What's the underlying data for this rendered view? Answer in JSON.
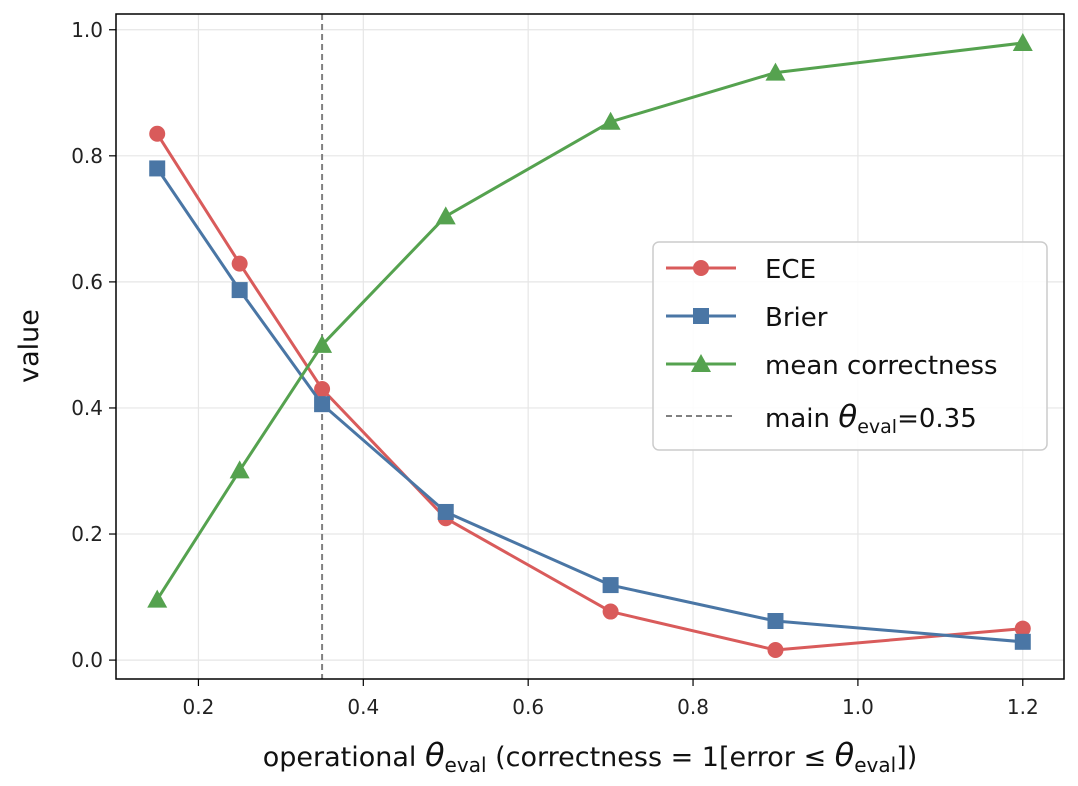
{
  "chart_data": {
    "type": "line",
    "xlabel": {
      "prefix": "operational ",
      "theta": "θ",
      "sub": "eval",
      "middle": "  (correctness = 1[error ≤ ",
      "theta2": "θ",
      "sub2": "eval",
      "suffix": "])"
    },
    "ylabel": "value",
    "xlim": [
      0.1,
      1.25
    ],
    "ylim": [
      -0.03,
      1.025
    ],
    "xticks": [
      0.2,
      0.4,
      0.6,
      0.8,
      1.0,
      1.2
    ],
    "xtick_labels": [
      "0.2",
      "0.4",
      "0.6",
      "0.8",
      "1.0",
      "1.2"
    ],
    "yticks": [
      0.0,
      0.2,
      0.4,
      0.6,
      0.8,
      1.0
    ],
    "ytick_labels": [
      "0.0",
      "0.2",
      "0.4",
      "0.6",
      "0.8",
      "1.0"
    ],
    "grid": true,
    "legend_position": "right",
    "x": [
      0.15,
      0.25,
      0.35,
      0.5,
      0.7,
      0.9,
      1.2
    ],
    "series": [
      {
        "name": "ECE",
        "marker": "circle",
        "color": "#d95b5b",
        "values": [
          0.835,
          0.629,
          0.43,
          0.225,
          0.077,
          0.016,
          0.05
        ]
      },
      {
        "name": "Brier",
        "marker": "square",
        "color": "#4a76a5",
        "values": [
          0.78,
          0.587,
          0.406,
          0.235,
          0.119,
          0.062,
          0.029
        ]
      },
      {
        "name": "mean correctness",
        "marker": "triangle",
        "color": "#55a24f",
        "values": [
          0.096,
          0.301,
          0.5,
          0.704,
          0.854,
          0.932,
          0.979
        ]
      }
    ],
    "reference_line": {
      "x": 0.35,
      "color": "#808080",
      "label_prefix": "main ",
      "label_theta": "θ",
      "label_sub": "eval",
      "label_suffix": "=0.35"
    }
  }
}
